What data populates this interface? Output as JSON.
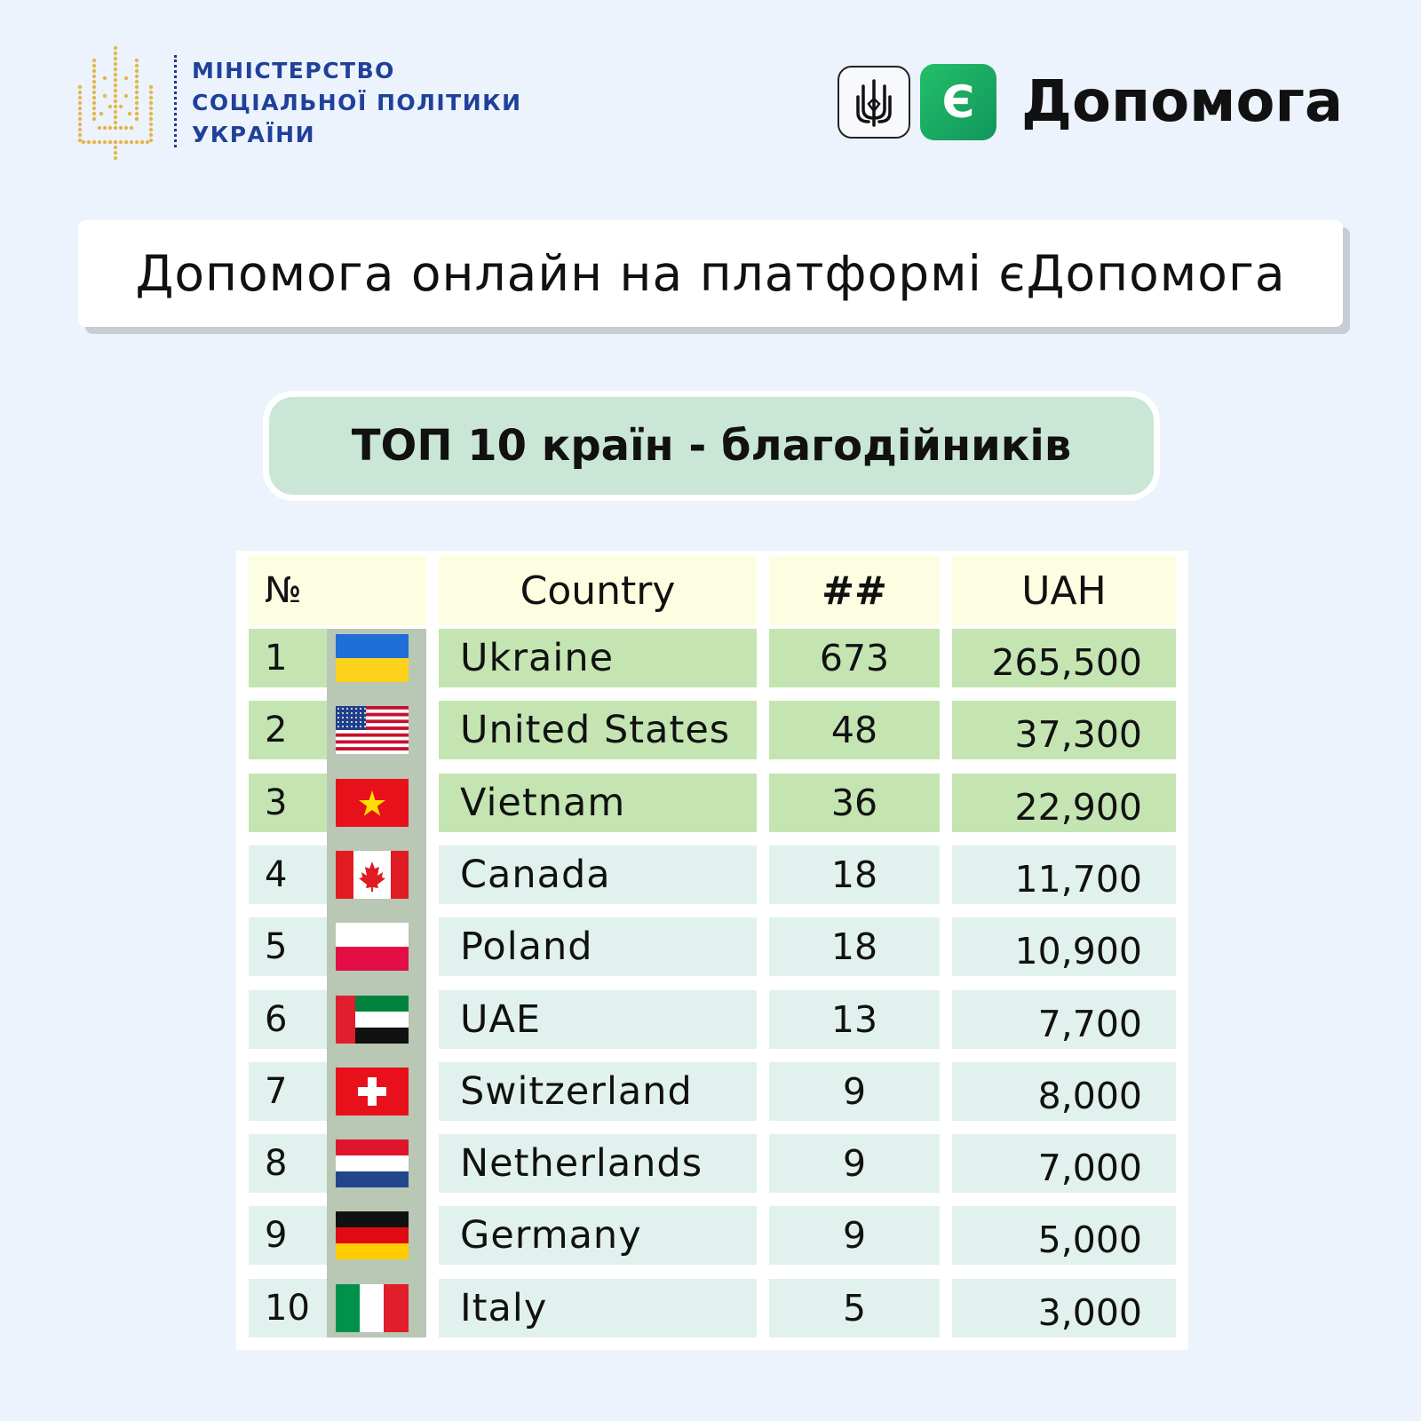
{
  "header": {
    "ministry_lines": [
      "МІНІСТЕРСТВО",
      "СОЦІАЛЬНОЇ ПОЛІТИКИ",
      "УКРАЇНИ"
    ],
    "brand_mark": "Є",
    "brand_name": "Допомога"
  },
  "title": "Допомога онлайн на платформі єДопомога",
  "subtitle": "ТОП 10 країн - благодійників",
  "table": {
    "columns": [
      "№",
      "Country",
      "##",
      "UAH"
    ],
    "rows": [
      {
        "num": "1",
        "country": "Ukraine",
        "count": "673",
        "uah": "265,500",
        "flag": "ukraine-flag-icon"
      },
      {
        "num": "2",
        "country": "United States",
        "count": "48",
        "uah": "37,300",
        "flag": "usa-flag-icon"
      },
      {
        "num": "3",
        "country": "Vietnam",
        "count": "36",
        "uah": "22,900",
        "flag": "vietnam-flag-icon"
      },
      {
        "num": "4",
        "country": "Canada",
        "count": "18",
        "uah": "11,700",
        "flag": "canada-flag-icon"
      },
      {
        "num": "5",
        "country": "Poland",
        "count": "18",
        "uah": "10,900",
        "flag": "poland-flag-icon"
      },
      {
        "num": "6",
        "country": "UAE",
        "count": "13",
        "uah": "7,700",
        "flag": "uae-flag-icon"
      },
      {
        "num": "7",
        "country": "Switzerland",
        "count": "9",
        "uah": "8,000",
        "flag": "switzerland-flag-icon"
      },
      {
        "num": "8",
        "country": "Netherlands",
        "count": "9",
        "uah": "7,000",
        "flag": "netherlands-flag-icon"
      },
      {
        "num": "9",
        "country": "Germany",
        "count": "9",
        "uah": "5,000",
        "flag": "germany-flag-icon"
      },
      {
        "num": "10",
        "country": "Italy",
        "count": "5",
        "uah": "3,000",
        "flag": "italy-flag-icon"
      }
    ],
    "colors": {
      "header_bg": "#fdfde1",
      "top3_bg": "#c4e5b2",
      "row_bg": "#e1f1ee",
      "flag_column_bg": "#b9c7b5"
    }
  }
}
